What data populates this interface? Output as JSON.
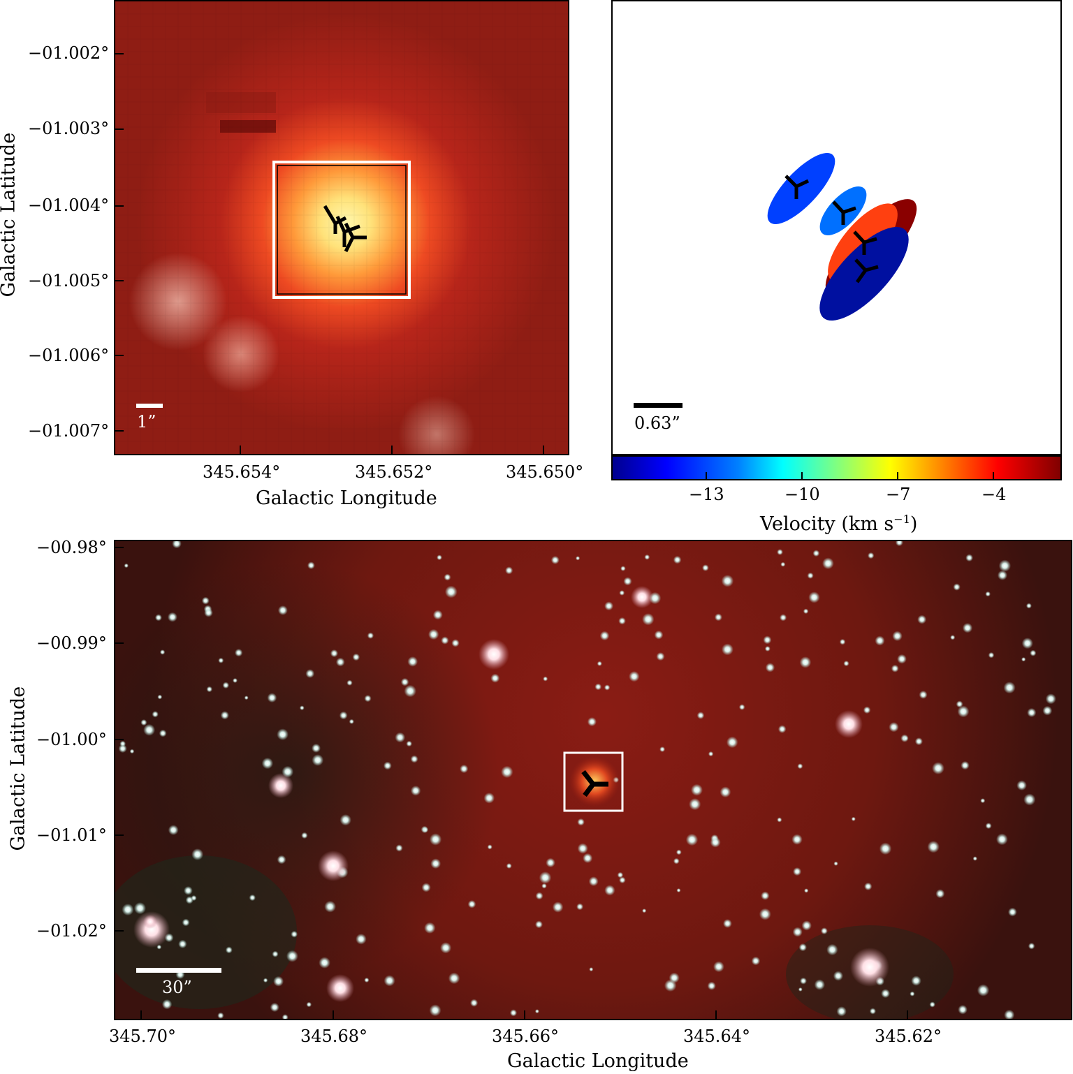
{
  "panels": {
    "top_left": {
      "ylabel": "Galactic Latitude",
      "xlabel": "Galactic Longitude",
      "yticks": [
        "−01.002°",
        "−01.003°",
        "−01.004°",
        "−01.005°",
        "−01.006°",
        "−01.007°"
      ],
      "xticks": [
        "345.654°",
        "345.652°",
        "345.650°"
      ],
      "scalebar": "1”"
    },
    "top_right": {
      "scalebar": "0.63”",
      "colorbar_ticks": [
        "−13",
        "−10",
        "−7",
        "−4"
      ],
      "colorbar_label": "Velocity (km s",
      "colorbar_label_sup": "−1",
      "colorbar_label_end": ")"
    },
    "bottom": {
      "ylabel": "Galactic Latitude",
      "xlabel": "Galactic Longitude",
      "yticks": [
        "−00.98°",
        "−00.99°",
        "−01.00°",
        "−01.01°",
        "−01.02°"
      ],
      "xticks": [
        "345.70°",
        "345.68°",
        "345.66°",
        "345.64°",
        "345.62°"
      ],
      "scalebar": "30”"
    }
  },
  "colors": {
    "field_red": "#8a1a12",
    "hot_core": "#fff2a0",
    "white_box": "#ffffff"
  }
}
